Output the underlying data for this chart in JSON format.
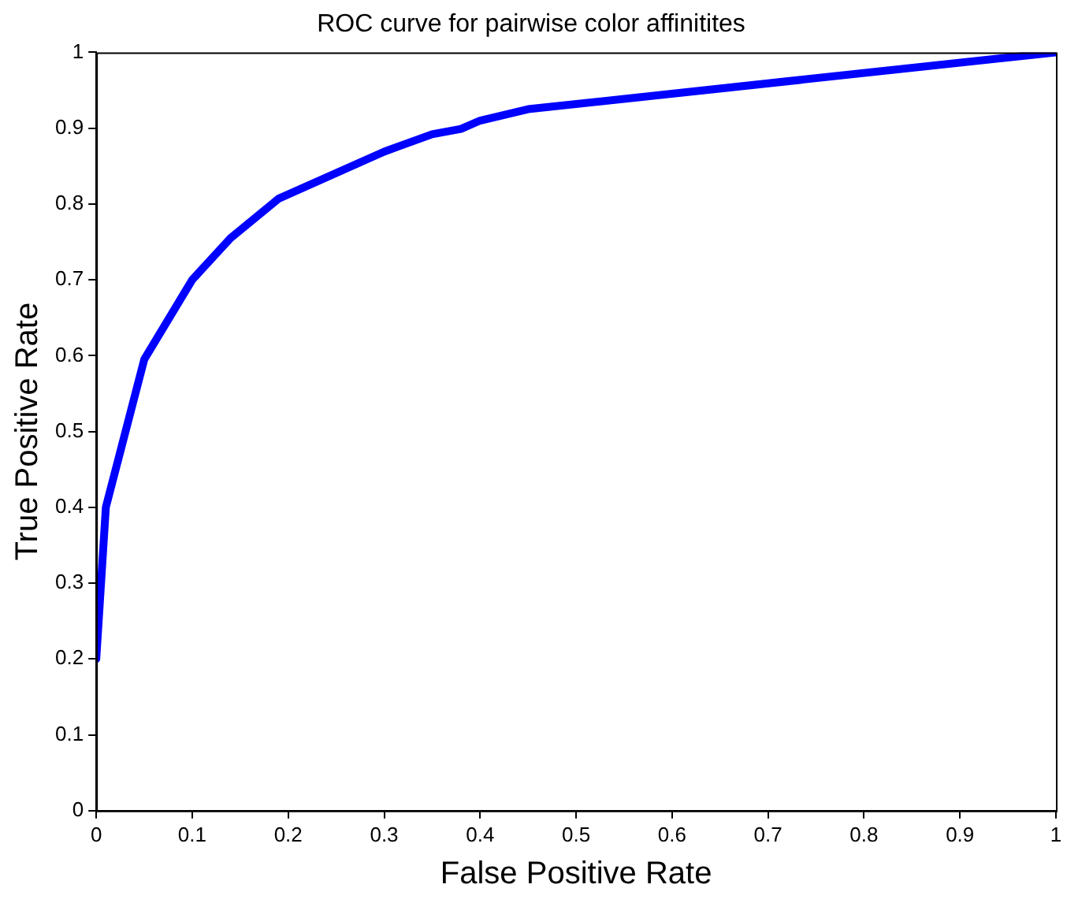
{
  "chart_data": {
    "type": "line",
    "title": "ROC curve for pairwise color affinitites",
    "xlabel": "False Positive Rate",
    "ylabel": "True Positive Rate",
    "x": [
      0,
      0.01,
      0.05,
      0.1,
      0.14,
      0.19,
      0.3,
      0.35,
      0.38,
      0.4,
      0.45,
      1
    ],
    "series": [
      {
        "color": "#0000ff",
        "values": [
          0.2,
          0.4,
          0.595,
          0.7,
          0.755,
          0.807,
          0.869,
          0.892,
          0.899,
          0.91,
          0.925,
          1
        ]
      }
    ],
    "xlim": [
      0,
      1
    ],
    "ylim": [
      0,
      1
    ],
    "xticks": [
      0,
      0.1,
      0.2,
      0.3,
      0.4,
      0.5,
      0.6,
      0.7,
      0.8,
      0.9,
      1
    ],
    "yticks": [
      0,
      0.1,
      0.2,
      0.3,
      0.4,
      0.5,
      0.6,
      0.7,
      0.8,
      0.9,
      1
    ],
    "grid": false,
    "legend": false,
    "marker": "none",
    "line_style": "solid"
  }
}
